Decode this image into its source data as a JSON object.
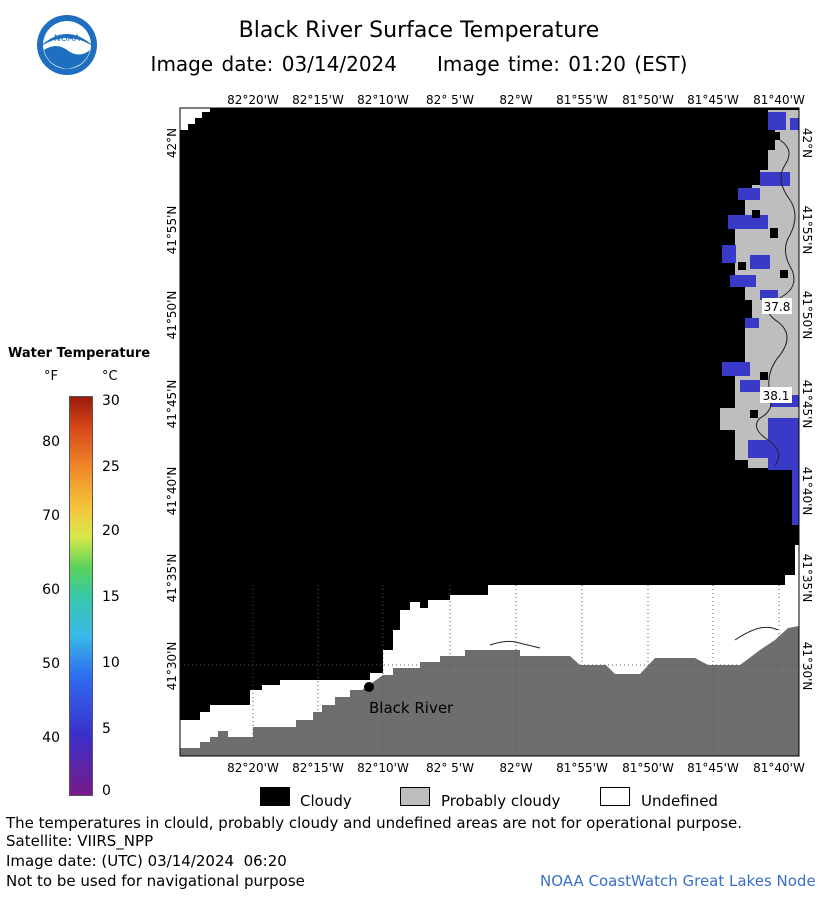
{
  "header": {
    "title": "Black River Surface Temperature",
    "date_text": "Image date: 03/14/2024",
    "time_text": "Image time: 01:20 (EST)",
    "logo_text": "NOAA"
  },
  "map": {
    "lon_labels": [
      "82°20'W",
      "82°15'W",
      "82°10'W",
      "82° 5'W",
      "82°W",
      "81°55'W",
      "81°50'W",
      "81°45'W",
      "81°40'W"
    ],
    "lat_labels": [
      "42°N",
      "41°55'N",
      "41°50'N",
      "41°45'N",
      "41°40'N",
      "41°35'N",
      "41°30'N"
    ],
    "contour_labels": [
      "37.8",
      "38.1"
    ],
    "station_name": "Black River",
    "colors": {
      "cloudy": "#000000",
      "probably_cloudy": "#bebebe",
      "undefined": "#ffffff",
      "land": "#6e6e6e",
      "cold_water": "#3a3ac8"
    }
  },
  "legend": {
    "title": "Water Temperature",
    "unit_f": "°F",
    "unit_c": "°C",
    "f_ticks": [
      "80",
      "70",
      "60",
      "50",
      "40"
    ],
    "c_ticks": [
      "30",
      "25",
      "20",
      "15",
      "10",
      "5",
      "0"
    ]
  },
  "key": {
    "cloudy": "Cloudy",
    "probably_cloudy": "Probably cloudy",
    "undefined": "Undefined"
  },
  "footer": {
    "note": "The temperatures in clould, probably cloudy and undefined areas are not for operational purpose.",
    "satellite": "Satellite: VIIRS_NPP",
    "image_date": "Image date: (UTC) 03/14/2024  06:20",
    "navigation": "Not to be used for navigational purpose",
    "credit": "NOAA CoastWatch Great Lakes Node"
  }
}
